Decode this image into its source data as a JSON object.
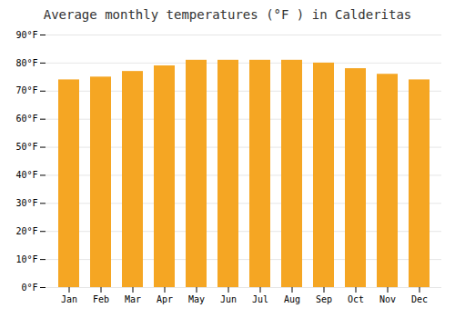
{
  "chart_data": {
    "type": "bar",
    "title": "Average monthly temperatures (°F ) in Calderitas",
    "categories": [
      "Jan",
      "Feb",
      "Mar",
      "Apr",
      "May",
      "Jun",
      "Jul",
      "Aug",
      "Sep",
      "Oct",
      "Nov",
      "Dec"
    ],
    "values": [
      74,
      75,
      77,
      79,
      81,
      81,
      81,
      81,
      80,
      78,
      76,
      74
    ],
    "color": "#F5A623",
    "ylim": [
      0,
      90
    ],
    "yticks": [
      {
        "value": 0,
        "label": "0°F"
      },
      {
        "value": 10,
        "label": "10°F"
      },
      {
        "value": 20,
        "label": "20°F"
      },
      {
        "value": 30,
        "label": "30°F"
      },
      {
        "value": 40,
        "label": "40°F"
      },
      {
        "value": 50,
        "label": "50°F"
      },
      {
        "value": 60,
        "label": "60°F"
      },
      {
        "value": 70,
        "label": "70°F"
      },
      {
        "value": 80,
        "label": "80°F"
      },
      {
        "value": 90,
        "label": "90°F"
      }
    ],
    "grid": true
  }
}
